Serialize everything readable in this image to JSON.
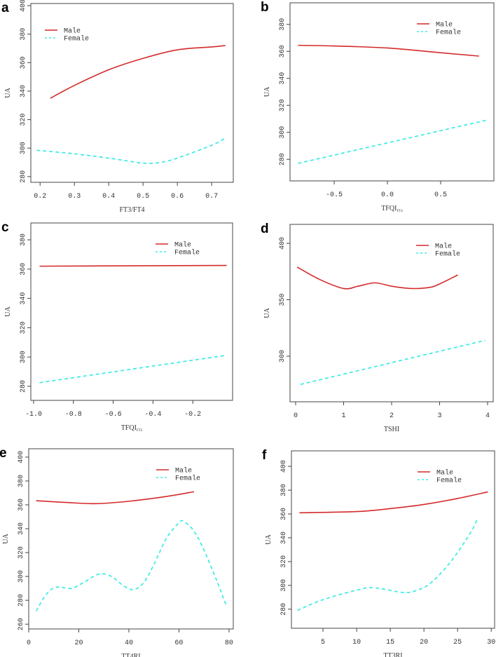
{
  "colors": {
    "male": "#d42a2a",
    "female": "#44ece4",
    "axis": "#444444"
  },
  "legend": [
    "Male",
    "Female"
  ],
  "chart_data": [
    {
      "panel": "a",
      "type": "line",
      "xlabel": "FT3/FT4",
      "ylabel": "UA",
      "xticks": [
        0.2,
        0.3,
        0.4,
        0.5,
        0.6,
        0.7
      ],
      "xtick_labels": [
        "0.2",
        "0.3",
        "0.4",
        "0.5",
        "0.6",
        "0.7"
      ],
      "yticks": [
        280,
        300,
        320,
        340,
        360,
        380,
        400
      ],
      "ytick_labels": [
        "280",
        "300",
        "320",
        "340",
        "360",
        "380",
        "400"
      ],
      "xlim": [
        0.173,
        0.763
      ],
      "ylim": [
        276,
        401.5
      ],
      "legend_position": "top-left",
      "series": [
        {
          "name": "Male",
          "style": "solid",
          "x": [
            0.23,
            0.3,
            0.4,
            0.5,
            0.6,
            0.7,
            0.74
          ],
          "y": [
            335,
            344,
            355,
            363,
            369,
            371,
            372
          ]
        },
        {
          "name": "Female",
          "style": "dashed",
          "x": [
            0.19,
            0.3,
            0.4,
            0.5,
            0.55,
            0.6,
            0.7,
            0.74
          ],
          "y": [
            298.5,
            296,
            293,
            289.5,
            290,
            293,
            302,
            307
          ]
        }
      ]
    },
    {
      "panel": "b",
      "type": "line",
      "xlabel": "TFQI",
      "xlabel_sub": "FT4",
      "ylabel": "UA",
      "xticks": [
        -0.5,
        0,
        0.5
      ],
      "xtick_labels": [
        "-0.5",
        "0.0",
        "0.5"
      ],
      "yticks": [
        280,
        300,
        320,
        340,
        360,
        380
      ],
      "ytick_labels": [
        "280",
        "300",
        "320",
        "340",
        "360",
        "380"
      ],
      "xlim": [
        -0.915,
        1.0
      ],
      "ylim": [
        264,
        396
      ],
      "legend_position": "top-right",
      "series": [
        {
          "name": "Male",
          "style": "solid",
          "x": [
            -0.84,
            -0.5,
            0,
            0.5,
            0.86
          ],
          "y": [
            364.5,
            364,
            362.5,
            359,
            356.5
          ]
        },
        {
          "name": "Female",
          "style": "dashed",
          "x": [
            -0.84,
            0.93
          ],
          "y": [
            277,
            309
          ]
        }
      ]
    },
    {
      "panel": "c",
      "type": "line",
      "xlabel": "TFQI",
      "xlabel_sub": "FT3",
      "ylabel": "UA",
      "xticks": [
        -1.0,
        -0.8,
        -0.6,
        -0.4,
        -0.2
      ],
      "xtick_labels": [
        "-1.0",
        "-0.8",
        "-0.6",
        "-0.4",
        "-0.2"
      ],
      "yticks": [
        280,
        300,
        320,
        340,
        360,
        380
      ],
      "ytick_labels": [
        "280",
        "300",
        "320",
        "340",
        "360",
        "380"
      ],
      "xlim": [
        -1.014,
        0.0
      ],
      "ylim": [
        270.4,
        391.5
      ],
      "legend_position": "top-right",
      "series": [
        {
          "name": "Male",
          "style": "solid",
          "x": [
            -0.97,
            -0.03
          ],
          "y": [
            362,
            362.5
          ]
        },
        {
          "name": "Female",
          "style": "dashed",
          "x": [
            -0.97,
            -0.04
          ],
          "y": [
            282.5,
            301
          ]
        }
      ]
    },
    {
      "panel": "d",
      "type": "line",
      "xlabel": "TSHI",
      "ylabel": "UA",
      "xticks": [
        0,
        1,
        2,
        3,
        4
      ],
      "xtick_labels": [
        "0",
        "1",
        "2",
        "3",
        "4"
      ],
      "yticks": [
        300,
        350,
        400
      ],
      "ytick_labels": [
        "300",
        "350",
        "400"
      ],
      "xlim": [
        -0.117,
        4.117
      ],
      "ylim": [
        259.6,
        416.8
      ],
      "legend_position": "top-right",
      "series": [
        {
          "name": "Male",
          "style": "solid",
          "x": [
            0.03,
            0.5,
            1.0,
            1.3,
            1.65,
            2.0,
            2.4,
            2.8,
            3.0,
            3.38
          ],
          "y": [
            379,
            368,
            360,
            362,
            365,
            362,
            360,
            361,
            364,
            372
          ]
        },
        {
          "name": "Female",
          "style": "dashed",
          "x": [
            0.1,
            3.95
          ],
          "y": [
            275,
            314
          ]
        }
      ]
    },
    {
      "panel": "e",
      "type": "line",
      "xlabel": "TT4RI",
      "ylabel": "UA",
      "xticks": [
        0,
        20,
        40,
        60,
        80
      ],
      "xtick_labels": [
        "0",
        "20",
        "40",
        "60",
        "80"
      ],
      "yticks": [
        260,
        280,
        300,
        320,
        340,
        360,
        380,
        400
      ],
      "ytick_labels": [
        "260",
        "280",
        "300",
        "320",
        "340",
        "360",
        "380",
        "400"
      ],
      "xlim": [
        0,
        81.7
      ],
      "ylim": [
        256,
        407
      ],
      "legend_position": "top-right",
      "series": [
        {
          "name": "Male",
          "style": "solid",
          "x": [
            3,
            15,
            27,
            40,
            55,
            66
          ],
          "y": [
            363.5,
            362,
            361,
            363,
            367,
            371
          ]
        },
        {
          "name": "Female",
          "style": "dashed",
          "x": [
            3,
            7,
            11,
            17,
            22,
            28,
            33,
            38,
            42,
            46,
            50,
            55,
            60,
            62,
            66,
            70,
            75,
            79
          ],
          "y": [
            271,
            285,
            291,
            290,
            295,
            302,
            300,
            292,
            289,
            295,
            310,
            332,
            345,
            346,
            338,
            322,
            297,
            275
          ]
        }
      ]
    },
    {
      "panel": "f",
      "type": "line",
      "xlabel": "TT3RI",
      "ylabel": "UA",
      "xticks": [
        5,
        10,
        15,
        20,
        25,
        30
      ],
      "xtick_labels": [
        "5",
        "10",
        "15",
        "20",
        "25",
        "30"
      ],
      "yticks": [
        280,
        300,
        320,
        340,
        360,
        380,
        400
      ],
      "ytick_labels": [
        "280",
        "300",
        "320",
        "340",
        "360",
        "380",
        "400"
      ],
      "xlim": [
        0.31,
        30.5
      ],
      "ylim": [
        264,
        413
      ],
      "legend_position": "top-right",
      "series": [
        {
          "name": "Male",
          "style": "solid",
          "x": [
            1.5,
            10,
            15,
            20,
            25,
            29.5
          ],
          "y": [
            361,
            362,
            364.5,
            368,
            373,
            378.5
          ]
        },
        {
          "name": "Female",
          "style": "dashed",
          "x": [
            1.2,
            5,
            10,
            12.5,
            17,
            19,
            21,
            24,
            27,
            28
          ],
          "y": [
            279,
            288,
            296,
            298,
            294,
            296,
            302,
            320,
            345,
            357
          ]
        }
      ]
    }
  ]
}
